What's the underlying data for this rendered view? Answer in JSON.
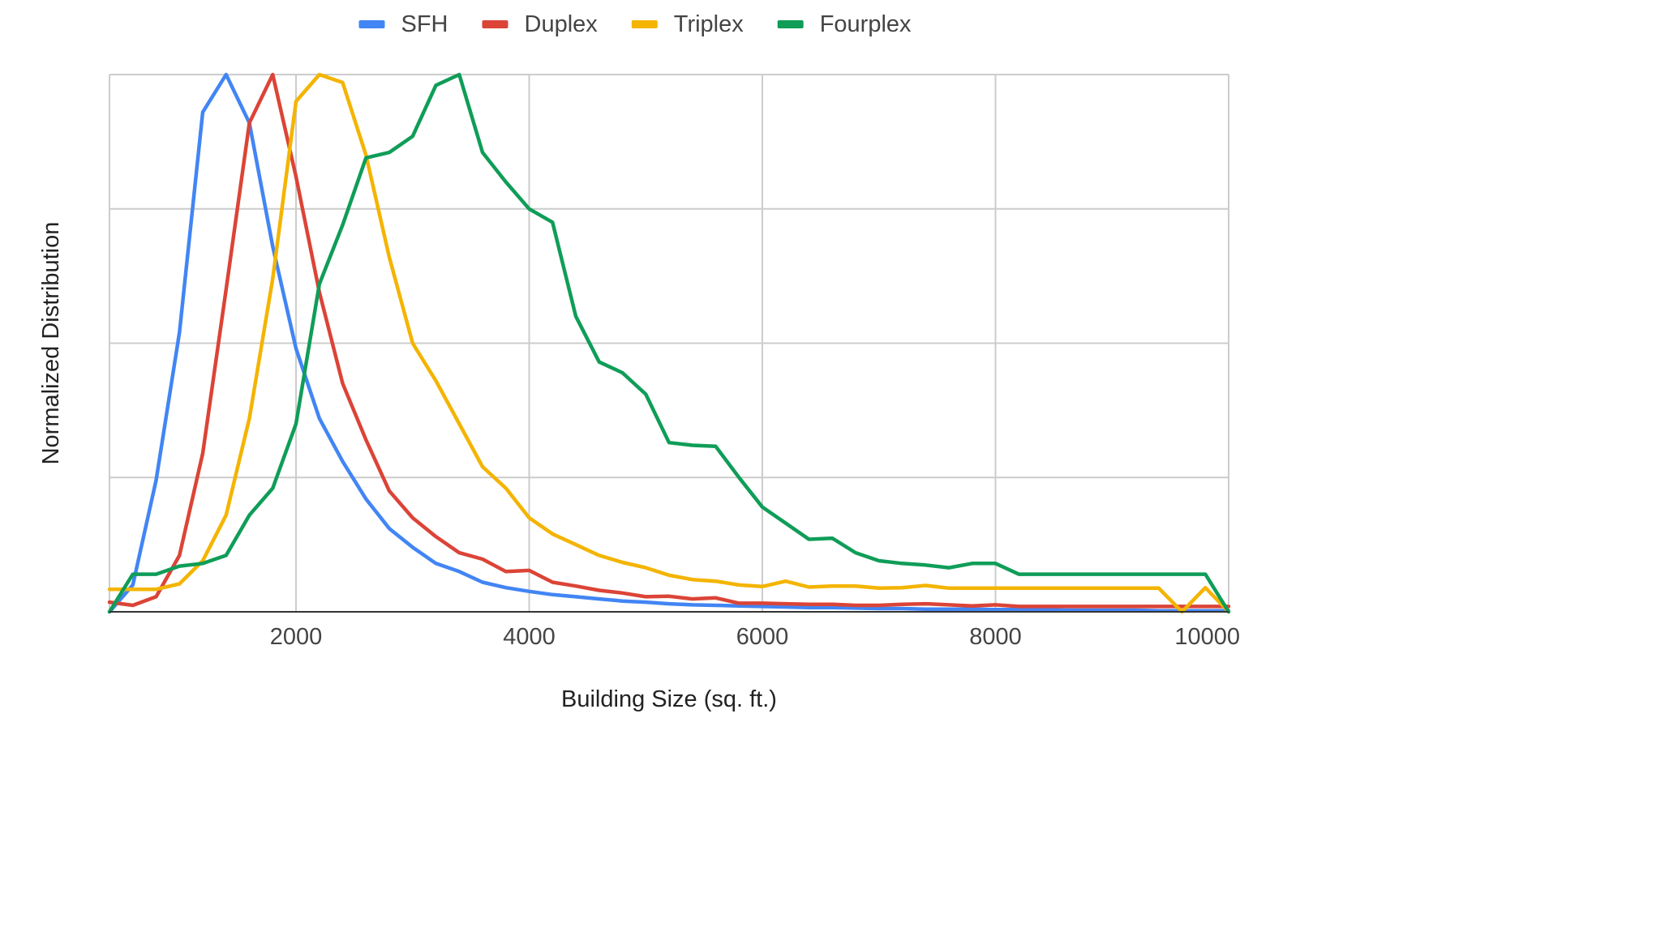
{
  "chart_data": {
    "type": "line",
    "title": "",
    "xlabel": "Building Size (sq. ft.)",
    "ylabel": "Normalized Distribution",
    "xlim": [
      400,
      10000
    ],
    "ylim": [
      0,
      1
    ],
    "x_ticks": [
      2000,
      4000,
      6000,
      8000,
      10000
    ],
    "y_gridlines": [
      0,
      0.25,
      0.5,
      0.75,
      1
    ],
    "grid": true,
    "legend_position": "top",
    "x": [
      400,
      600,
      800,
      1000,
      1200,
      1400,
      1600,
      1800,
      2000,
      2200,
      2400,
      2600,
      2800,
      3000,
      3200,
      3400,
      3600,
      3800,
      4000,
      4200,
      4400,
      4600,
      4800,
      5000,
      5200,
      5400,
      5600,
      5800,
      6000,
      6200,
      6400,
      6600,
      6800,
      7000,
      7200,
      7400,
      7600,
      7800,
      8000,
      8200,
      8400,
      8600,
      8800,
      9000,
      9200,
      9400,
      9600,
      9800,
      10000
    ],
    "series": [
      {
        "name": "SFH",
        "color": "#4285F4",
        "values": [
          0.0,
          0.05,
          0.245,
          0.52,
          0.93,
          1.0,
          0.91,
          0.68,
          0.49,
          0.36,
          0.28,
          0.21,
          0.155,
          0.12,
          0.09,
          0.075,
          0.055,
          0.045,
          0.038,
          0.032,
          0.028,
          0.024,
          0.02,
          0.018,
          0.015,
          0.013,
          0.012,
          0.011,
          0.01,
          0.009,
          0.008,
          0.008,
          0.007,
          0.006,
          0.006,
          0.005,
          0.005,
          0.005,
          0.004,
          0.004,
          0.004,
          0.003,
          0.003,
          0.003,
          0.003,
          0.002,
          0.002,
          0.002,
          0.002
        ]
      },
      {
        "name": "Duplex",
        "color": "#DB4437",
        "values": [
          0.018,
          0.012,
          0.028,
          0.105,
          0.295,
          0.6,
          0.91,
          1.0,
          0.81,
          0.595,
          0.425,
          0.32,
          0.225,
          0.175,
          0.14,
          0.11,
          0.098,
          0.075,
          0.077,
          0.055,
          0.048,
          0.04,
          0.035,
          0.028,
          0.029,
          0.024,
          0.026,
          0.016,
          0.016,
          0.015,
          0.014,
          0.014,
          0.012,
          0.012,
          0.014,
          0.015,
          0.013,
          0.011,
          0.013,
          0.01,
          0.01,
          0.01,
          0.01,
          0.01,
          0.01,
          0.01,
          0.01,
          0.01,
          0.01
        ]
      },
      {
        "name": "Triplex",
        "color": "#F4B400",
        "values": [
          0.042,
          0.042,
          0.042,
          0.052,
          0.095,
          0.18,
          0.36,
          0.62,
          0.95,
          1.0,
          0.985,
          0.85,
          0.66,
          0.5,
          0.43,
          0.35,
          0.27,
          0.23,
          0.175,
          0.145,
          0.125,
          0.105,
          0.092,
          0.082,
          0.068,
          0.06,
          0.057,
          0.05,
          0.047,
          0.057,
          0.046,
          0.048,
          0.048,
          0.044,
          0.045,
          0.049,
          0.044,
          0.044,
          0.044,
          0.044,
          0.044,
          0.044,
          0.044,
          0.044,
          0.044,
          0.044,
          0.0,
          0.045,
          0.0
        ]
      },
      {
        "name": "Fourplex",
        "color": "#0F9D58",
        "values": [
          0.0,
          0.07,
          0.07,
          0.085,
          0.09,
          0.105,
          0.18,
          0.23,
          0.35,
          0.61,
          0.72,
          0.845,
          0.855,
          0.885,
          0.98,
          1.0,
          0.855,
          0.8,
          0.75,
          0.725,
          0.55,
          0.465,
          0.445,
          0.405,
          0.315,
          0.31,
          0.308,
          0.25,
          0.195,
          0.165,
          0.135,
          0.137,
          0.11,
          0.095,
          0.09,
          0.087,
          0.082,
          0.09,
          0.09,
          0.07,
          0.07,
          0.07,
          0.07,
          0.07,
          0.07,
          0.07,
          0.07,
          0.07,
          0.0
        ]
      }
    ]
  }
}
